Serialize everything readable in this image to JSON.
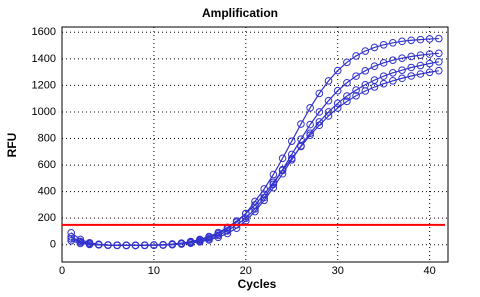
{
  "chart_data": {
    "type": "line",
    "title": "Amplification",
    "xlabel": "Cycles",
    "ylabel": "RFU",
    "x": [
      1,
      2,
      3,
      4,
      5,
      6,
      7,
      8,
      9,
      10,
      11,
      12,
      13,
      14,
      15,
      16,
      17,
      18,
      19,
      20,
      21,
      22,
      23,
      24,
      25,
      26,
      27,
      28,
      29,
      30,
      31,
      32,
      33,
      34,
      35,
      36,
      37,
      38,
      39,
      40,
      41
    ],
    "series": [
      {
        "color": "#3333cc",
        "values": [
          60,
          25,
          10,
          2,
          -2,
          -3,
          -4,
          -4,
          -3,
          -2,
          0,
          5,
          12,
          22,
          35,
          55,
          82,
          120,
          170,
          235,
          326,
          420,
          529,
          651,
          780,
          909,
          1031,
          1140,
          1234,
          1312,
          1374,
          1422,
          1459,
          1486,
          1506,
          1521,
          1532,
          1540,
          1545,
          1550,
          1553
        ]
      },
      {
        "color": "#3333cc",
        "values": [
          45,
          20,
          5,
          0,
          -3,
          -4,
          -5,
          -5,
          -4,
          -3,
          -2,
          2,
          8,
          16,
          28,
          45,
          70,
          105,
          150,
          200,
          270,
          355,
          455,
          565,
          680,
          795,
          905,
          1000,
          1085,
          1160,
          1220,
          1270,
          1310,
          1345,
          1370,
          1390,
          1405,
          1418,
          1428,
          1436,
          1442
        ]
      },
      {
        "color": "#3333cc",
        "values": [
          90,
          40,
          15,
          3,
          -2,
          -4,
          -5,
          -5,
          -4,
          -3,
          -2,
          0,
          5,
          12,
          22,
          36,
          56,
          85,
          125,
          180,
          250,
          335,
          430,
          535,
          640,
          745,
          840,
          925,
          1000,
          1065,
          1120,
          1165,
          1205,
          1240,
          1270,
          1295,
          1315,
          1335,
          1350,
          1365,
          1378
        ]
      },
      {
        "color": "#3333cc",
        "values": [
          30,
          10,
          2,
          -1,
          -3,
          -4,
          -4,
          -4,
          -3,
          -2,
          0,
          5,
          12,
          24,
          40,
          62,
          92,
          130,
          178,
          235,
          300,
          380,
          470,
          560,
          650,
          740,
          825,
          900,
          970,
          1030,
          1080,
          1122,
          1158,
          1188,
          1213,
          1235,
          1254,
          1271,
          1286,
          1299,
          1311
        ]
      }
    ],
    "threshold": 150,
    "threshold_color": "#ff0000",
    "xlim": [
      0,
      42
    ],
    "xticks": [
      0,
      10,
      20,
      30,
      40
    ],
    "ylim": [
      -130,
      1640
    ],
    "yticks": [
      0,
      200,
      400,
      600,
      800,
      1000,
      1200,
      1400,
      1600
    ],
    "grid": true
  }
}
